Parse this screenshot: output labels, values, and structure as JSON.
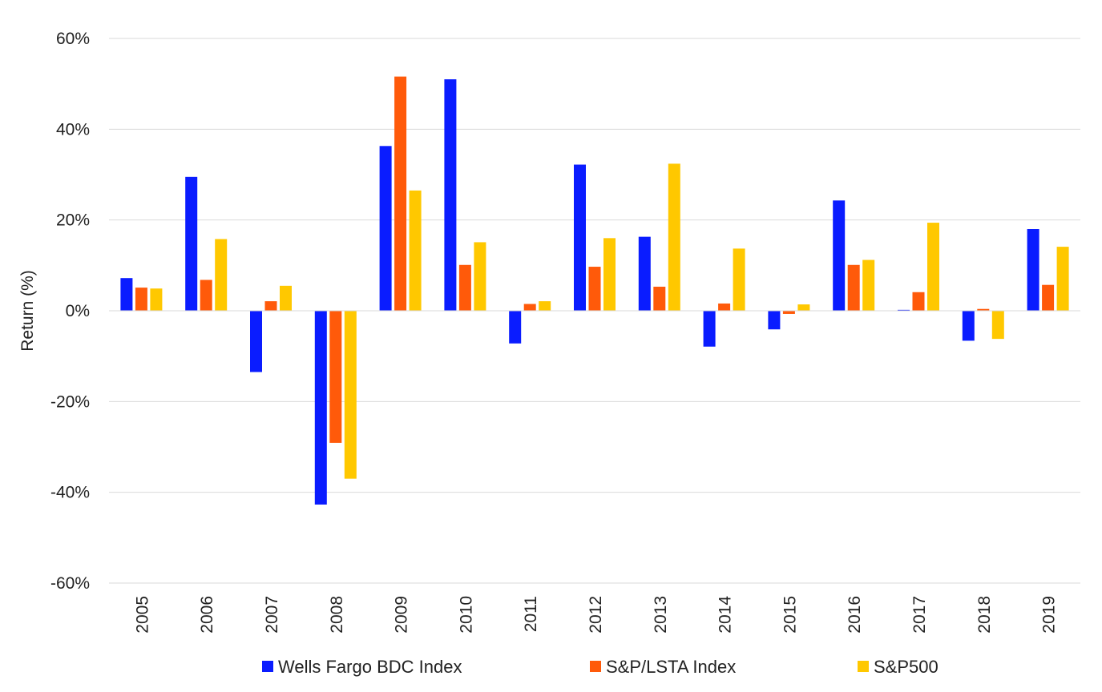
{
  "chart_data": {
    "type": "bar",
    "title": "",
    "xlabel": "",
    "ylabel": "Return (%)",
    "ylim": [
      -60,
      60
    ],
    "yticks": [
      -60,
      -40,
      -20,
      0,
      20,
      40,
      60
    ],
    "ytick_labels": [
      "-60%",
      "-40%",
      "-20%",
      "0%",
      "20%",
      "40%",
      "60%"
    ],
    "grid": true,
    "legend_position": "bottom",
    "categories": [
      "2005",
      "2006",
      "2007",
      "2008",
      "2009",
      "2010",
      "2011",
      "2012",
      "2013",
      "2014",
      "2015",
      "2016",
      "2017",
      "2018",
      "2019"
    ],
    "series": [
      {
        "name": "Wells Fargo BDC Index",
        "color": "#0a1cff",
        "values": [
          7.2,
          29.5,
          -13.5,
          -42.7,
          36.3,
          51.0,
          -7.2,
          32.2,
          16.3,
          -7.9,
          -4.1,
          24.3,
          0.2,
          -6.6,
          18.0
        ]
      },
      {
        "name": "S&P/LSTA Index",
        "color": "#ff5a0a",
        "values": [
          5.1,
          6.8,
          2.1,
          -29.1,
          51.6,
          10.1,
          1.5,
          9.7,
          5.3,
          1.6,
          -0.7,
          10.1,
          4.1,
          0.4,
          5.7
        ]
      },
      {
        "name": "S&P500",
        "color": "#ffc800",
        "values": [
          4.9,
          15.8,
          5.5,
          -37.0,
          26.5,
          15.1,
          2.1,
          16.0,
          32.4,
          13.7,
          1.4,
          11.2,
          19.4,
          -6.2,
          14.1
        ]
      }
    ]
  }
}
